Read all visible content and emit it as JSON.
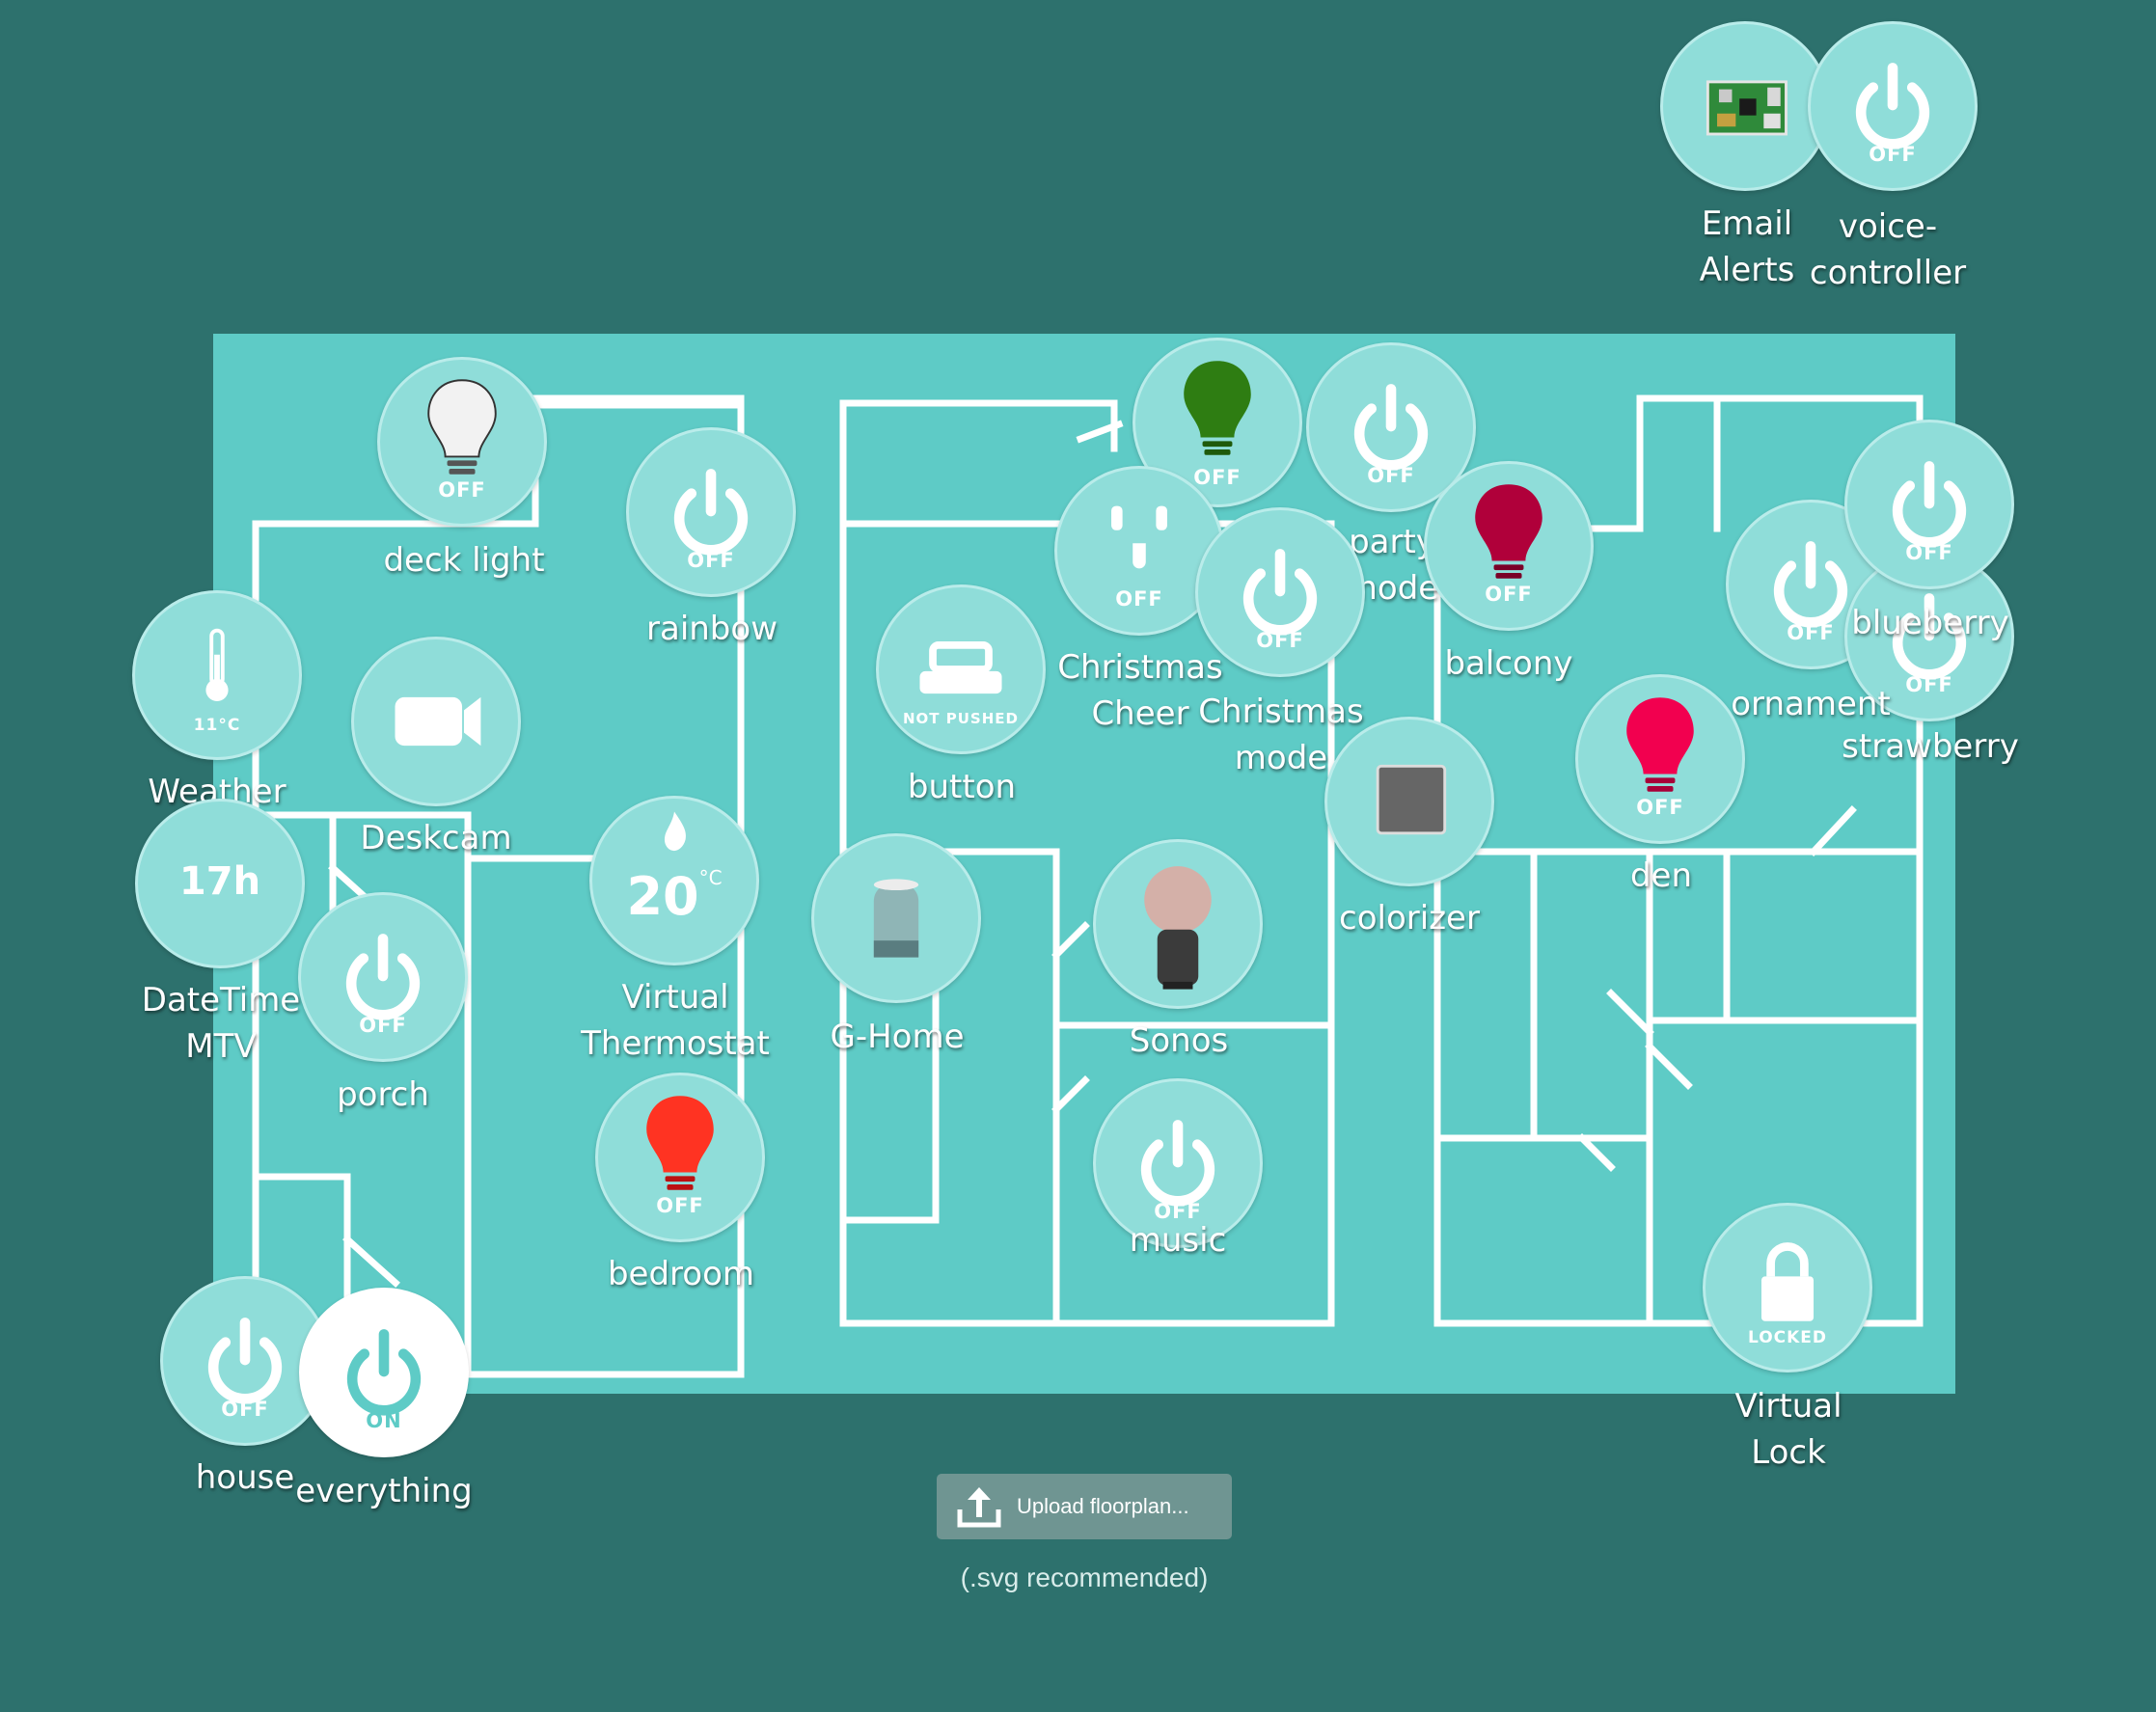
{
  "devices": {
    "email_alerts": {
      "name": "Email\nAlerts"
    },
    "voice_controller": {
      "name": "voice-\ncontroller",
      "state": "OFF"
    },
    "deck_light": {
      "name": "deck light",
      "state": "OFF"
    },
    "rainbow": {
      "name": "rainbow",
      "state": "OFF"
    },
    "weather": {
      "name": "Weather",
      "value": "11°C"
    },
    "deskcam": {
      "name": "Deskcam"
    },
    "datetime": {
      "name": "DateTime\nMTV",
      "value": "17h"
    },
    "porch": {
      "name": "porch",
      "state": "OFF"
    },
    "thermostat": {
      "name": "Virtual\nThermostat",
      "value": "20",
      "unit": "°C"
    },
    "bedroom": {
      "name": "bedroom",
      "state": "OFF"
    },
    "house": {
      "name": "house",
      "state": "OFF"
    },
    "everything": {
      "name": "everything",
      "state": "ON"
    },
    "button": {
      "name": "button",
      "state": "NOT PUSHED"
    },
    "tree_light": {
      "state": "OFF"
    },
    "christmas_cheer": {
      "name": "Christmas\nCheer",
      "state": "OFF"
    },
    "christmas_mode": {
      "name": "Christmas\nmode",
      "state": "OFF"
    },
    "party_mode": {
      "name": "party\nmode",
      "state": "OFF"
    },
    "balcony": {
      "name": "balcony",
      "state": "OFF"
    },
    "ghome": {
      "name": "G-Home"
    },
    "sonos": {
      "name": "Sonos"
    },
    "music": {
      "name": "music",
      "state": "OFF"
    },
    "colorizer": {
      "name": "colorizer"
    },
    "den": {
      "name": "den",
      "state": "OFF"
    },
    "ornament": {
      "name": "ornament",
      "state": "OFF"
    },
    "blueberry": {
      "name": "blueberry",
      "state": "OFF"
    },
    "strawberry": {
      "name": "strawberry",
      "state": "OFF"
    },
    "virtual_lock": {
      "name": "Virtual\nLock",
      "state": "LOCKED"
    }
  },
  "upload": {
    "label": "Upload floorplan...",
    "hint": "(.svg recommended)"
  },
  "colors": {
    "background": "#2d716d",
    "floorplan": "#5ecbc6",
    "walls": "#ffffff",
    "tile": "#8fddd9",
    "tile_on": "#ffffff",
    "bulb_white": "#f2f2f2",
    "bulb_green": "#2e7d12",
    "bulb_crimson": "#b0003a",
    "bulb_pink": "#f2004f",
    "bulb_red": "#ff3322",
    "colorizer_swatch": "#666666"
  },
  "icons": {
    "power": "power-icon",
    "bulb": "lightbulb-icon",
    "thermometer": "thermometer-icon",
    "camera": "video-camera-icon",
    "flame": "flame-icon",
    "outlet": "outlet-icon",
    "button": "push-button-icon",
    "speaker": "speaker-icon",
    "lock": "lock-icon",
    "board": "circuit-board-icon",
    "upload": "upload-icon"
  }
}
